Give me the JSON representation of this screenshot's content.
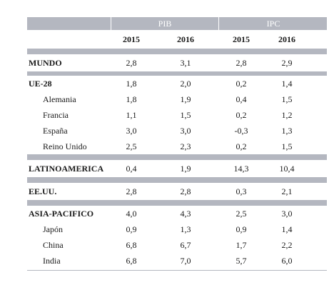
{
  "header": {
    "group_pib": "PIB",
    "group_ipc": "IPC",
    "years": [
      "2015",
      "2016",
      "2015",
      "2016"
    ]
  },
  "rows": [
    {
      "label": "MUNDO",
      "values": [
        "2,8",
        "3,1",
        "2,8",
        "2,9"
      ]
    },
    {
      "label": "UE-28",
      "values": [
        "1,8",
        "2,0",
        "0,2",
        "1,4"
      ]
    },
    {
      "label": "Alemania",
      "values": [
        "1,8",
        "1,9",
        "0,4",
        "1,5"
      ]
    },
    {
      "label": "Francia",
      "values": [
        "1,1",
        "1,5",
        "0,2",
        "1,2"
      ]
    },
    {
      "label": "España",
      "values": [
        "3,0",
        "3,0",
        "-0,3",
        "1,3"
      ]
    },
    {
      "label": "Reino Unido",
      "values": [
        "2,5",
        "2,3",
        "0,2",
        "1,5"
      ]
    },
    {
      "label": "LATINOAMERICA",
      "values": [
        "0,4",
        "1,9",
        "14,3",
        "10,4"
      ]
    },
    {
      "label": "EE.UU.",
      "values": [
        "2,8",
        "2,8",
        "0,3",
        "2,1"
      ]
    },
    {
      "label": "ASIA-PACIFICO",
      "values": [
        "4,0",
        "4,3",
        "2,5",
        "3,0"
      ]
    },
    {
      "label": "Japón",
      "values": [
        "0,9",
        "1,3",
        "0,9",
        "1,4"
      ]
    },
    {
      "label": "China",
      "values": [
        "6,8",
        "6,7",
        "1,7",
        "2,2"
      ]
    },
    {
      "label": "India",
      "values": [
        "6,8",
        "7,0",
        "5,7",
        "6,0"
      ]
    }
  ],
  "colors": {
    "band": "#b4b7c0",
    "text": "#1a1a1a"
  }
}
